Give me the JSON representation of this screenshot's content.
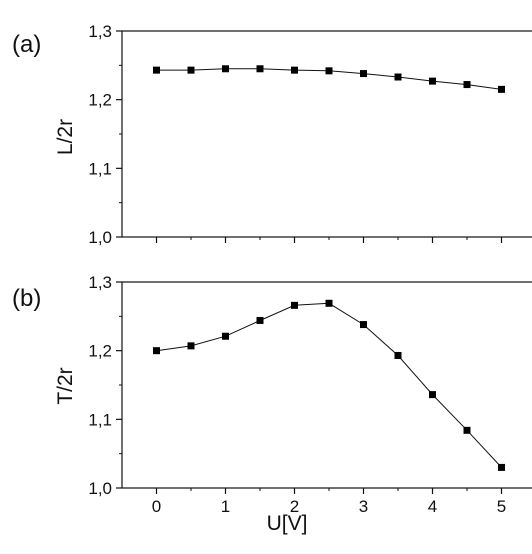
{
  "chart_data": [
    {
      "type": "line",
      "panel_label": "(a)",
      "ylabel": "L/2r",
      "xlabel": "",
      "xlim": [
        -0.5,
        5.5
      ],
      "ylim": [
        1.0,
        1.3
      ],
      "x_ticks": [
        0,
        1,
        2,
        3,
        4,
        5
      ],
      "x_tick_labels": [
        "",
        "",
        "",
        "",
        "",
        ""
      ],
      "y_ticks": [
        1.0,
        1.1,
        1.2,
        1.3
      ],
      "y_tick_labels": [
        "1,0",
        "1,1",
        "1,2",
        "1,3"
      ],
      "grid": false,
      "series": [
        {
          "x": [
            0,
            0.5,
            1,
            1.5,
            2,
            2.5,
            3,
            3.5,
            4,
            4.5,
            5
          ],
          "y": [
            1.243,
            1.243,
            1.245,
            1.245,
            1.243,
            1.242,
            1.238,
            1.233,
            1.227,
            1.222,
            1.215
          ]
        }
      ]
    },
    {
      "type": "line",
      "panel_label": "(b)",
      "ylabel": "T/2r",
      "xlabel": "U[V]",
      "xlim": [
        -0.5,
        5.5
      ],
      "ylim": [
        1.0,
        1.3
      ],
      "x_ticks": [
        0,
        1,
        2,
        3,
        4,
        5
      ],
      "x_tick_labels": [
        "0",
        "1",
        "2",
        "3",
        "4",
        "5"
      ],
      "y_ticks": [
        1.0,
        1.1,
        1.2,
        1.3
      ],
      "y_tick_labels": [
        "1,0",
        "1,1",
        "1,2",
        "1,3"
      ],
      "grid": false,
      "series": [
        {
          "x": [
            0,
            0.5,
            1,
            1.5,
            2,
            2.5,
            3,
            3.5,
            4,
            4.5,
            5
          ],
          "y": [
            1.2,
            1.207,
            1.221,
            1.244,
            1.266,
            1.269,
            1.238,
            1.193,
            1.136,
            1.084,
            1.03
          ]
        }
      ]
    }
  ]
}
